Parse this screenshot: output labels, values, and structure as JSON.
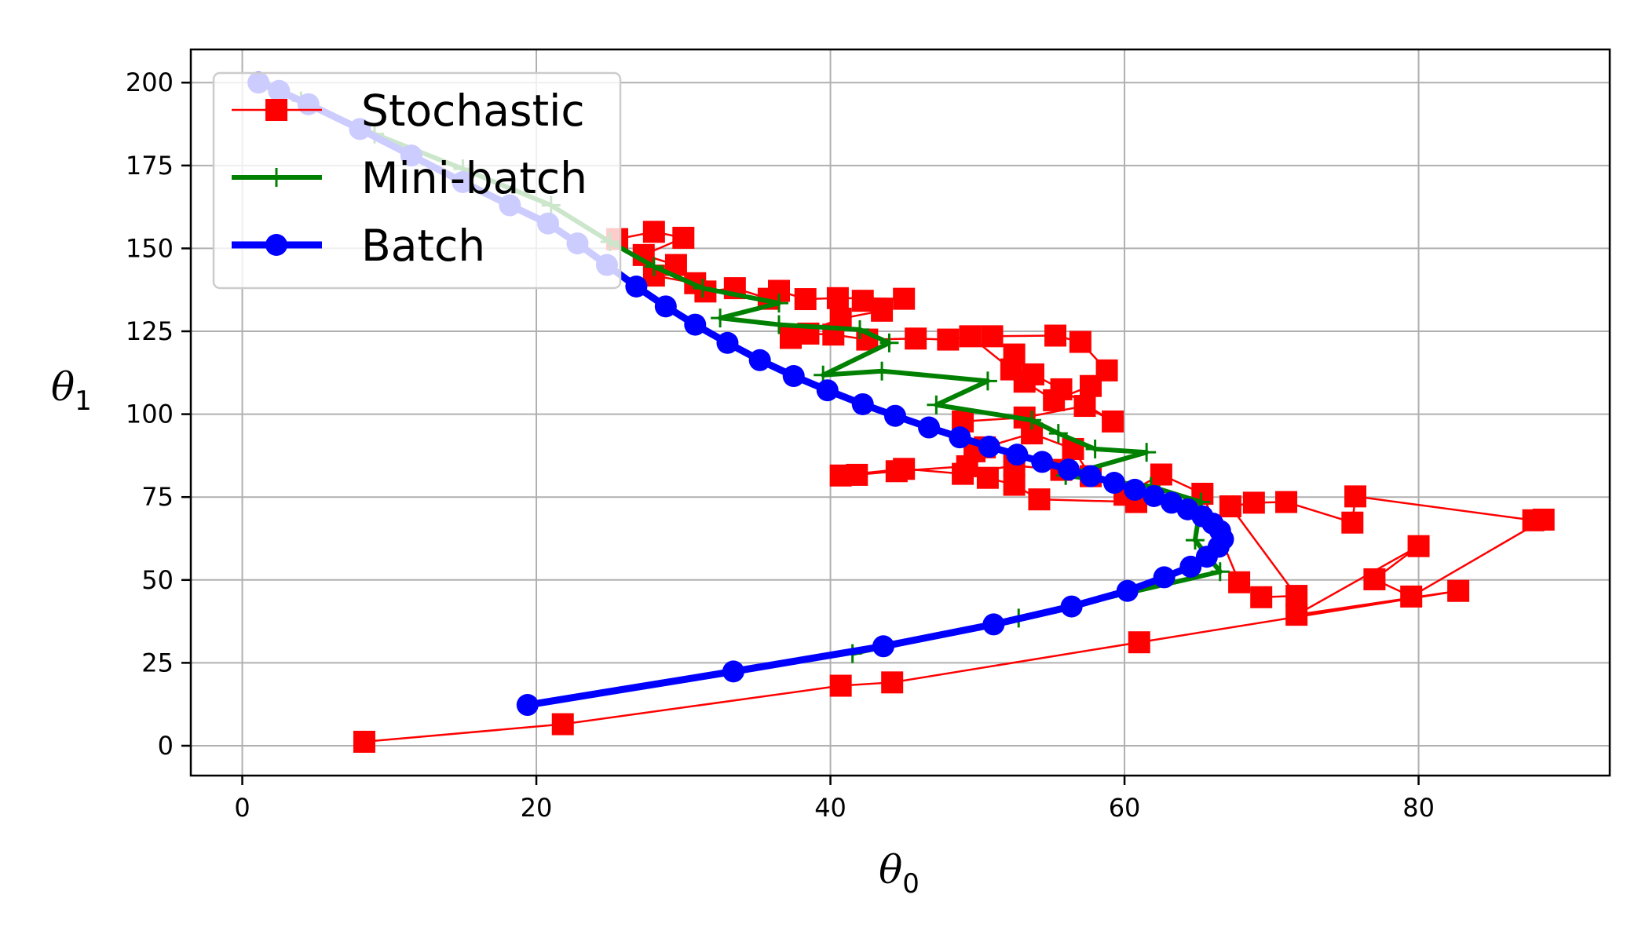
{
  "chart_data": {
    "type": "line",
    "title": "",
    "xlabel": {
      "symbol": "θ",
      "subscript": "0"
    },
    "ylabel": {
      "symbol": "θ",
      "subscript": "1"
    },
    "xlim": [
      -3.5,
      93
    ],
    "ylim": [
      -9,
      210
    ],
    "xticks": [
      0,
      20,
      40,
      60,
      80
    ],
    "yticks": [
      0,
      25,
      50,
      75,
      100,
      125,
      150,
      175,
      200
    ],
    "xtick_labels": [
      "0",
      "20",
      "40",
      "60",
      "80"
    ],
    "ytick_labels": [
      "0",
      "25",
      "50",
      "75",
      "100",
      "125",
      "150",
      "175",
      "200"
    ],
    "grid": true,
    "legend_position": "top-left",
    "colors": {
      "stochastic": "#ff0000",
      "minibatch": "#008000",
      "batch": "#0000ff",
      "grid": "#b0b0b0"
    },
    "series": [
      {
        "name": "Stochastic",
        "marker": "square",
        "points": [
          [
            8.3,
            1.2
          ],
          [
            21.8,
            6.5
          ],
          [
            40.7,
            18.1
          ],
          [
            44.2,
            19.1
          ],
          [
            61.0,
            31.2
          ],
          [
            82.7,
            46.7
          ],
          [
            71.7,
            39.5
          ],
          [
            80.0,
            60.2
          ],
          [
            77.0,
            50.2
          ],
          [
            79.5,
            45.0
          ],
          [
            88.5,
            68.2
          ],
          [
            87.8,
            68.0
          ],
          [
            75.7,
            75.2
          ],
          [
            75.5,
            67.3
          ],
          [
            71.0,
            73.5
          ],
          [
            68.8,
            73.3
          ],
          [
            67.2,
            72.2
          ],
          [
            71.7,
            45.2
          ],
          [
            69.3,
            44.8
          ],
          [
            67.8,
            49.3
          ],
          [
            65.3,
            76.0
          ],
          [
            62.5,
            81.8
          ],
          [
            60.0,
            75.7
          ],
          [
            60.8,
            73.5
          ],
          [
            54.2,
            74.3
          ],
          [
            52.5,
            78.7
          ],
          [
            50.7,
            80.8
          ],
          [
            49.3,
            84.3
          ],
          [
            44.5,
            82.8
          ],
          [
            41.8,
            81.7
          ],
          [
            40.7,
            81.5
          ],
          [
            45.0,
            83.5
          ],
          [
            49.0,
            82.0
          ],
          [
            52.5,
            84.5
          ],
          [
            55.7,
            83.2
          ],
          [
            57.7,
            81.3
          ],
          [
            56.5,
            89.5
          ],
          [
            53.7,
            94.2
          ],
          [
            50.5,
            90.0
          ],
          [
            49.8,
            88.8
          ],
          [
            49.0,
            97.8
          ],
          [
            53.2,
            99.0
          ],
          [
            57.3,
            102.5
          ],
          [
            59.2,
            97.8
          ],
          [
            55.7,
            107.5
          ],
          [
            53.8,
            112.0
          ],
          [
            52.5,
            118.0
          ],
          [
            51.0,
            123.5
          ],
          [
            55.3,
            123.7
          ],
          [
            57.0,
            121.8
          ],
          [
            58.8,
            113.2
          ],
          [
            57.7,
            108.5
          ],
          [
            55.2,
            104.2
          ],
          [
            53.2,
            109.8
          ],
          [
            52.3,
            113.5
          ],
          [
            49.5,
            123.5
          ],
          [
            48.0,
            122.5
          ],
          [
            45.8,
            122.8
          ],
          [
            42.5,
            122.5
          ],
          [
            40.2,
            124.0
          ],
          [
            38.5,
            124.3
          ],
          [
            37.3,
            123.0
          ],
          [
            40.7,
            128.8
          ],
          [
            43.5,
            131.2
          ],
          [
            42.2,
            134.2
          ],
          [
            45.0,
            134.8
          ],
          [
            40.5,
            135.0
          ],
          [
            38.3,
            134.7
          ],
          [
            36.5,
            137.2
          ],
          [
            35.8,
            134.8
          ],
          [
            33.5,
            138.0
          ],
          [
            31.5,
            137.0
          ],
          [
            30.8,
            139.5
          ],
          [
            28.0,
            141.8
          ],
          [
            29.5,
            145.0
          ],
          [
            27.3,
            148.0
          ],
          [
            30.0,
            153.2
          ],
          [
            28.0,
            155.0
          ],
          [
            25.5,
            152.8
          ]
        ]
      },
      {
        "name": "Mini-batch",
        "marker": "plus",
        "points": [
          [
            41.5,
            27.8
          ],
          [
            52.8,
            38.5
          ],
          [
            66.5,
            52.5
          ],
          [
            64.8,
            62.0
          ],
          [
            65.2,
            73.5
          ],
          [
            61.8,
            78.2
          ],
          [
            56.0,
            81.5
          ],
          [
            61.5,
            88.5
          ],
          [
            58.0,
            89.5
          ],
          [
            55.5,
            94.2
          ],
          [
            53.7,
            98.2
          ],
          [
            47.2,
            102.8
          ],
          [
            50.7,
            110.0
          ],
          [
            43.5,
            113.0
          ],
          [
            39.5,
            111.8
          ],
          [
            44.0,
            121.5
          ],
          [
            42.0,
            125.5
          ],
          [
            36.5,
            127.0
          ],
          [
            32.5,
            129.0
          ],
          [
            36.5,
            133.5
          ],
          [
            31.3,
            138.0
          ],
          [
            28.0,
            144.5
          ],
          [
            25.0,
            152.0
          ],
          [
            21.0,
            163.0
          ],
          [
            15.0,
            174.0
          ],
          [
            9.0,
            184.5
          ],
          [
            4.0,
            194.5
          ],
          [
            1.3,
            200.0
          ]
        ]
      },
      {
        "name": "Batch",
        "marker": "circle",
        "points": [
          [
            19.4,
            12.3
          ],
          [
            33.4,
            22.4
          ],
          [
            43.6,
            30.0
          ],
          [
            51.1,
            36.6
          ],
          [
            56.4,
            42.0
          ],
          [
            60.2,
            46.7
          ],
          [
            62.7,
            50.8
          ],
          [
            64.5,
            54.0
          ],
          [
            65.6,
            57.0
          ],
          [
            66.4,
            60.0
          ],
          [
            66.7,
            62.3
          ],
          [
            66.5,
            64.8
          ],
          [
            66.0,
            67.0
          ],
          [
            65.3,
            69.2
          ],
          [
            64.3,
            71.3
          ],
          [
            63.2,
            73.3
          ],
          [
            62.0,
            75.3
          ],
          [
            60.7,
            77.2
          ],
          [
            59.3,
            79.3
          ],
          [
            57.7,
            81.3
          ],
          [
            56.2,
            83.3
          ],
          [
            54.4,
            85.6
          ],
          [
            52.7,
            87.8
          ],
          [
            50.8,
            90.2
          ],
          [
            48.8,
            93.0
          ],
          [
            46.7,
            96.0
          ],
          [
            44.4,
            99.5
          ],
          [
            42.2,
            103.0
          ],
          [
            39.8,
            107.2
          ],
          [
            37.5,
            111.5
          ],
          [
            35.2,
            116.3
          ],
          [
            33.0,
            121.5
          ],
          [
            30.8,
            127.0
          ],
          [
            28.8,
            132.5
          ],
          [
            26.8,
            138.5
          ],
          [
            24.8,
            145.0
          ],
          [
            22.8,
            151.5
          ],
          [
            20.8,
            157.5
          ],
          [
            18.2,
            163.0
          ],
          [
            15.0,
            170.0
          ],
          [
            11.5,
            178.0
          ],
          [
            8.0,
            186.0
          ],
          [
            4.5,
            193.5
          ],
          [
            2.5,
            197.5
          ],
          [
            1.1,
            200.0
          ]
        ]
      }
    ]
  }
}
